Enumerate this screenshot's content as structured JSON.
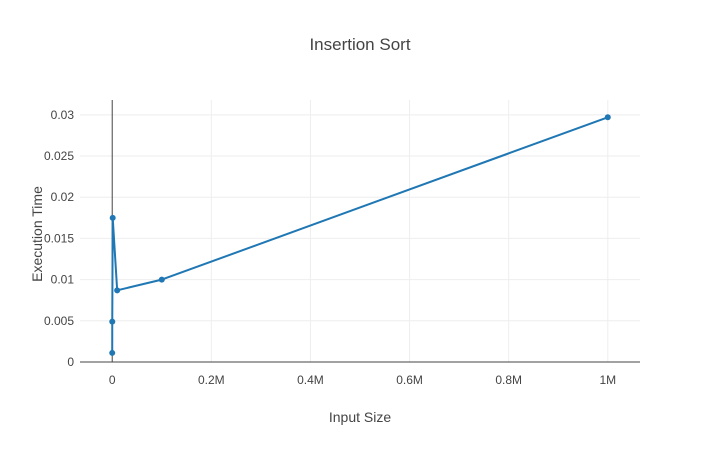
{
  "chart_data": {
    "type": "line",
    "title": "Insertion Sort",
    "xlabel": "Input Size",
    "ylabel": "Execution Time",
    "xlim": [
      -65000,
      1065000
    ],
    "ylim": [
      0,
      0.0318
    ],
    "x_ticks": [
      {
        "value": 0,
        "label": "0"
      },
      {
        "value": 200000,
        "label": "0.2M"
      },
      {
        "value": 400000,
        "label": "0.4M"
      },
      {
        "value": 600000,
        "label": "0.6M"
      },
      {
        "value": 800000,
        "label": "0.8M"
      },
      {
        "value": 1000000,
        "label": "1M"
      }
    ],
    "y_ticks": [
      {
        "value": 0,
        "label": "0"
      },
      {
        "value": 0.005,
        "label": "0.005"
      },
      {
        "value": 0.01,
        "label": "0.01"
      },
      {
        "value": 0.015,
        "label": "0.015"
      },
      {
        "value": 0.02,
        "label": "0.02"
      },
      {
        "value": 0.025,
        "label": "0.025"
      },
      {
        "value": 0.03,
        "label": "0.03"
      }
    ],
    "grid": true,
    "series": [
      {
        "color": "#1f77b4",
        "x": [
          10,
          100,
          1000,
          10000,
          100000,
          1000000
        ],
        "y": [
          0.0011,
          0.0049,
          0.0175,
          0.0087,
          0.01,
          0.0297
        ]
      }
    ]
  },
  "colors": {
    "grid": "#eeeeee",
    "axis": "#444444",
    "series": "#1f77b4"
  }
}
